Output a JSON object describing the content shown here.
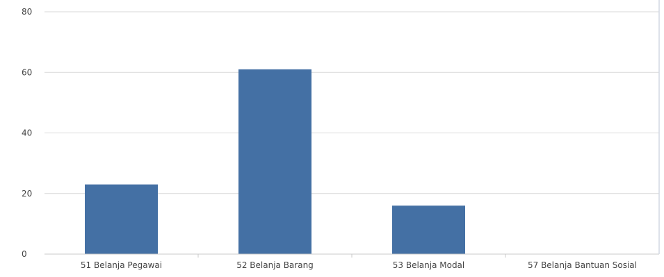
{
  "chart_data": {
    "type": "bar",
    "categories": [
      "51 Belanja Pegawai",
      "52 Belanja Barang",
      "53 Belanja Modal",
      "57 Belanja Bantuan Sosial"
    ],
    "values": [
      23,
      61,
      16,
      0
    ],
    "ylim": [
      0,
      80
    ],
    "yticks": [
      0,
      20,
      40,
      60,
      80
    ],
    "grid": true,
    "colors": {
      "bar": "#4470a4"
    }
  }
}
